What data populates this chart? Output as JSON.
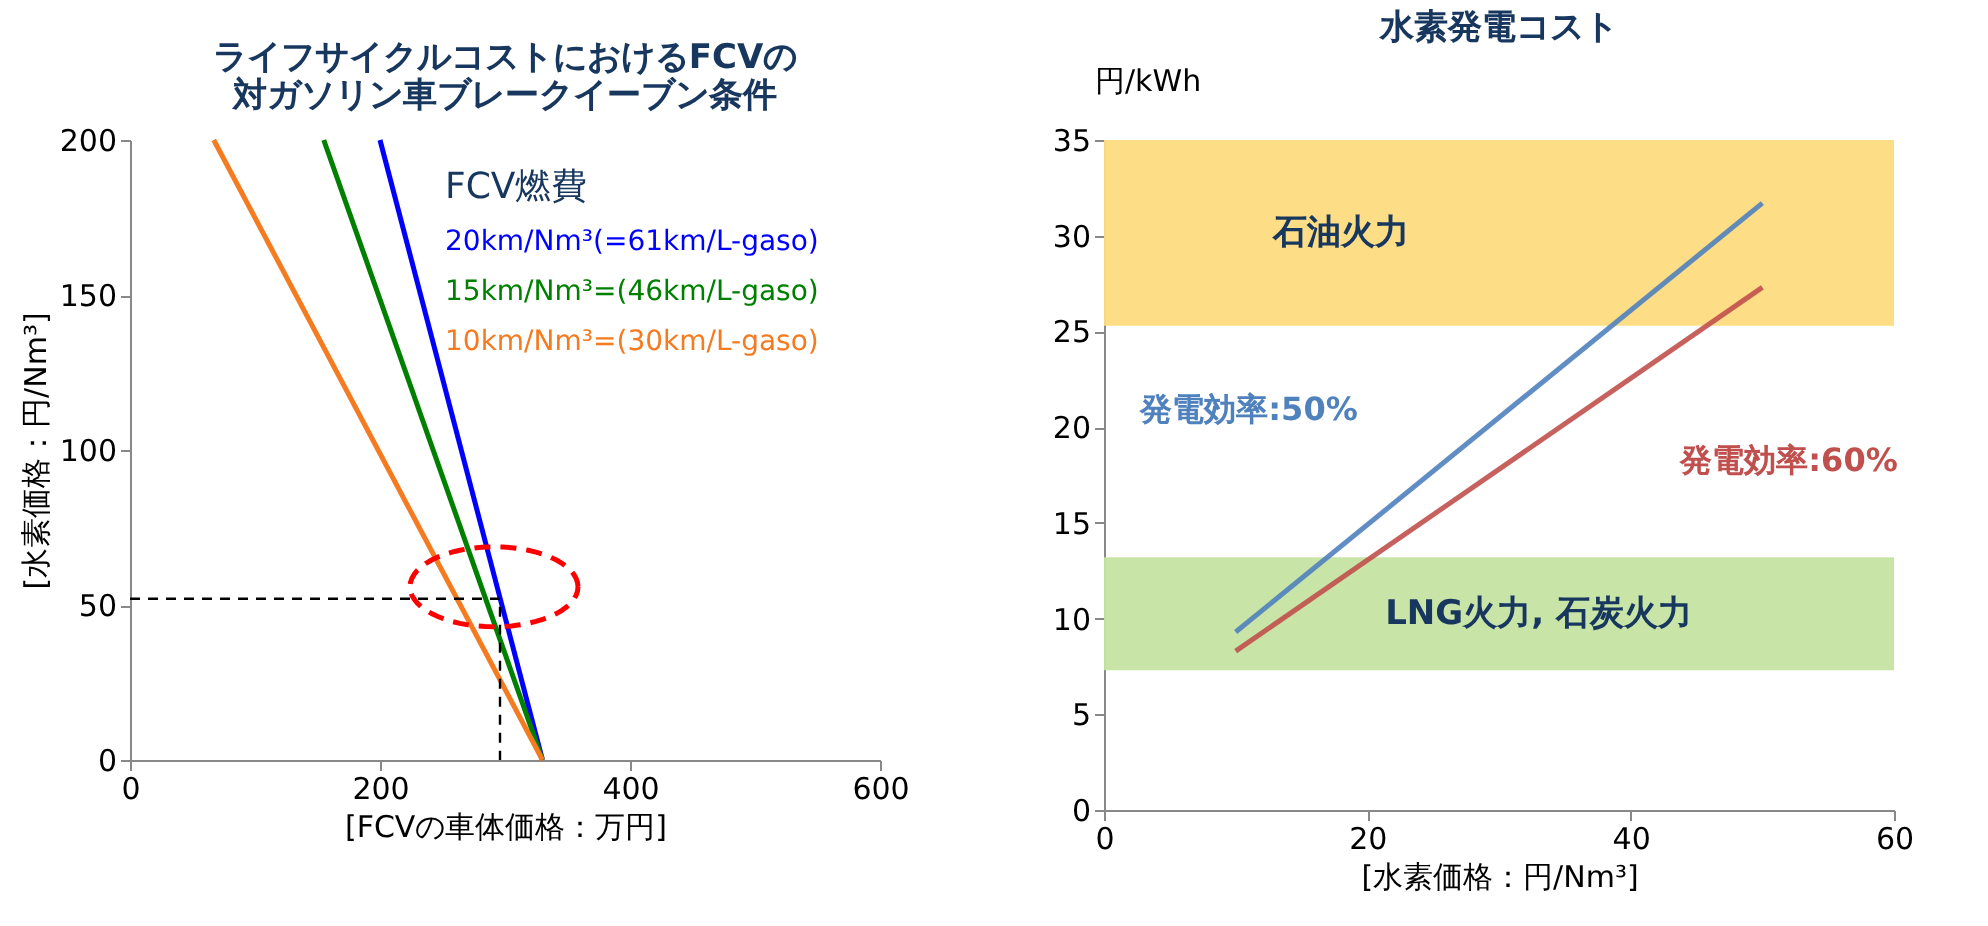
{
  "chart_data": [
    {
      "type": "line",
      "title": "ライフサイクルコストにおけるFCVの対ガソリン車ブレークイーブン条件",
      "xlabel": "[FCVの車体価格：万円]",
      "ylabel": "[水素価格：円/Nm³]",
      "xlim": [
        0,
        600
      ],
      "xticks": [
        0,
        200,
        400,
        600
      ],
      "ylim": [
        0,
        200
      ],
      "yticks": [
        0,
        50,
        100,
        150,
        200
      ],
      "grid": false,
      "legend": "top right",
      "legend_title": "FCV燃費",
      "series": [
        {
          "name": "20km/Nm³(=61km/L-gaso)",
          "color": "#0000ff",
          "x": [
            200,
            330
          ],
          "values": [
            200,
            0
          ]
        },
        {
          "name": "15km/Nm³=(46km/L-gaso)",
          "color": "#008000",
          "x": [
            155,
            330
          ],
          "values": [
            200,
            0
          ]
        },
        {
          "name": "10km/Nm³=(30km/L-gaso)",
          "color": "#f47b20",
          "x": [
            67,
            330
          ],
          "values": [
            200,
            0
          ]
        },
        {
          "color": "#000000",
          "x": [
            0,
            296,
            296
          ],
          "values": [
            52,
            52,
            0
          ],
          "line_style": "dashed"
        }
      ]
    },
    {
      "type": "line",
      "title": "水素発電コスト",
      "xlabel": "[水素価格：円/Nm³]",
      "ylabel": "円/kWh",
      "xlim": [
        0,
        60
      ],
      "xticks": [
        0,
        20,
        40,
        60
      ],
      "ylim": [
        0,
        35
      ],
      "yticks": [
        0,
        5,
        10,
        15,
        20,
        25,
        30,
        35
      ],
      "grid": false,
      "legend": false,
      "series": [
        {
          "name": "発電効率:50%",
          "color": "#4f81bd",
          "x": [
            10,
            50
          ],
          "values": [
            9.3,
            31.7
          ]
        },
        {
          "name": "発電効率:60%",
          "color": "#c0504d",
          "x": [
            10,
            50
          ],
          "values": [
            8.3,
            27.3
          ]
        }
      ],
      "bands": [
        {
          "axis": "y",
          "from": 25.3,
          "to": 35,
          "label": "石油火力",
          "color": "#fddb7e"
        },
        {
          "axis": "y",
          "from": 7.3,
          "to": 13.2,
          "label": "LNG火力, 石炭火力",
          "color": "#c6e3a2"
        }
      ]
    }
  ]
}
